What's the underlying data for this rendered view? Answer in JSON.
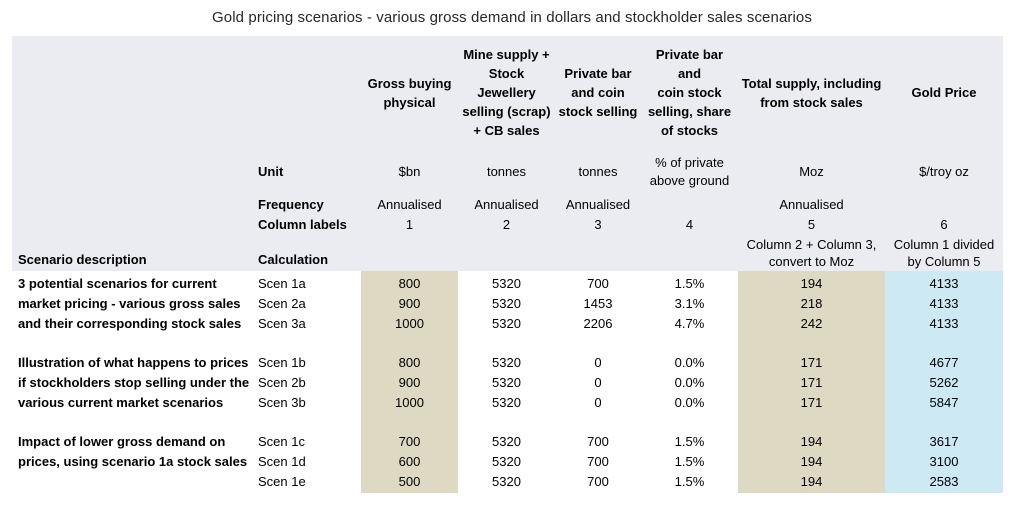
{
  "title": "Gold pricing scenarios - various gross demand in dollars and stockholder sales scenarios",
  "colors": {
    "header_band": "#ebecf2",
    "tan_highlight": "#ddd9c3",
    "blue_highlight": "#cde9f3",
    "title_text": "#26262e"
  },
  "columns": {
    "c1": [
      "Gross buying",
      "physical"
    ],
    "c2": [
      "Mine supply +",
      "Stock",
      "Jewellery",
      "selling (scrap)",
      "+ CB sales"
    ],
    "c3": [
      "Private bar",
      "and coin",
      "stock selling"
    ],
    "c4": [
      "Private bar and",
      "coin stock",
      "selling, share",
      "of stocks"
    ],
    "c5": [
      "Total supply, including",
      "from stock sales"
    ],
    "c6": [
      "Gold Price"
    ]
  },
  "meta_rows": {
    "unit": {
      "label": "Unit",
      "c1": "$bn",
      "c2": "tonnes",
      "c3": "tonnes",
      "c4": [
        "% of private",
        "above ground"
      ],
      "c5": "Moz",
      "c6": "$/troy oz"
    },
    "frequency": {
      "label": "Frequency",
      "c1": "Annualised",
      "c2": "Annualised",
      "c3": "Annualised",
      "c4": "",
      "c5": "Annualised",
      "c6": ""
    },
    "column_labels": {
      "label": "Column labels",
      "c1": "1",
      "c2": "2",
      "c3": "3",
      "c4": "4",
      "c5": "5",
      "c6": "6"
    },
    "calculation": {
      "desc_header": "Scenario description",
      "label": "Calculation",
      "c5": [
        "Column 2 + Column 3,",
        "convert to Moz"
      ],
      "c6": [
        "Column 1 divided",
        "by Column 5"
      ]
    }
  },
  "groups": [
    {
      "desc": [
        "3 potential scenarios for current",
        "market pricing - various gross sales",
        "and their corresponding stock sales"
      ],
      "rows": [
        {
          "scen": "Scen 1a",
          "c1": "800",
          "c2": "5320",
          "c3": "700",
          "c4": "1.5%",
          "c5": "194",
          "c6": "4133"
        },
        {
          "scen": "Scen 2a",
          "c1": "900",
          "c2": "5320",
          "c3": "1453",
          "c4": "3.1%",
          "c5": "218",
          "c6": "4133"
        },
        {
          "scen": "Scen 3a",
          "c1": "1000",
          "c2": "5320",
          "c3": "2206",
          "c4": "4.7%",
          "c5": "242",
          "c6": "4133"
        }
      ]
    },
    {
      "desc": [
        "Illustration of what happens to prices",
        "if stockholders stop selling under the",
        "various current market scenarios"
      ],
      "rows": [
        {
          "scen": "Scen 1b",
          "c1": "800",
          "c2": "5320",
          "c3": "0",
          "c4": "0.0%",
          "c5": "171",
          "c6": "4677"
        },
        {
          "scen": "Scen 2b",
          "c1": "900",
          "c2": "5320",
          "c3": "0",
          "c4": "0.0%",
          "c5": "171",
          "c6": "5262"
        },
        {
          "scen": "Scen 3b",
          "c1": "1000",
          "c2": "5320",
          "c3": "0",
          "c4": "0.0%",
          "c5": "171",
          "c6": "5847"
        }
      ]
    },
    {
      "desc": [
        "Impact of lower gross demand on",
        "prices, using scenario 1a stock sales",
        ""
      ],
      "rows": [
        {
          "scen": "Scen 1c",
          "c1": "700",
          "c2": "5320",
          "c3": "700",
          "c4": "1.5%",
          "c5": "194",
          "c6": "3617"
        },
        {
          "scen": "Scen 1d",
          "c1": "600",
          "c2": "5320",
          "c3": "700",
          "c4": "1.5%",
          "c5": "194",
          "c6": "3100"
        },
        {
          "scen": "Scen 1e",
          "c1": "500",
          "c2": "5320",
          "c3": "700",
          "c4": "1.5%",
          "c5": "194",
          "c6": "2583"
        }
      ]
    }
  ]
}
